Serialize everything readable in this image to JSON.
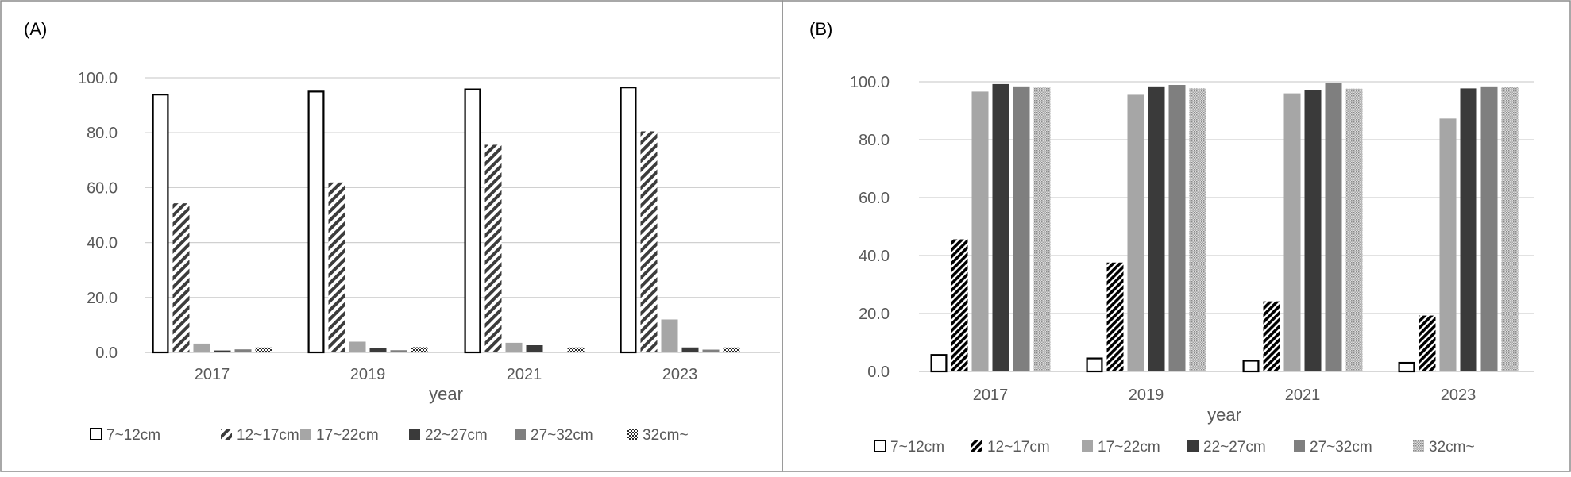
{
  "chart_data": [
    {
      "type": "bar",
      "panel_label": "(A)",
      "xlabel": "year",
      "ylabel": "",
      "ylim": [
        0,
        100
      ],
      "y_ticks": [
        "0.0",
        "20.0",
        "40.0",
        "60.0",
        "80.0",
        "100.0"
      ],
      "grid": true,
      "legend_position": "bottom",
      "categories": [
        "2017",
        "2019",
        "2021",
        "2023"
      ],
      "series": [
        {
          "name": "7~12cm",
          "pattern": "outline",
          "values": [
            94.2,
            95.3,
            96.1,
            96.8
          ]
        },
        {
          "name": "12~17cm",
          "pattern": "diag-wide",
          "values": [
            54.3,
            61.9,
            75.6,
            80.5
          ]
        },
        {
          "name": "17~22cm",
          "pattern": "light",
          "values": [
            3.2,
            3.9,
            3.5,
            12.0
          ]
        },
        {
          "name": "22~27cm",
          "pattern": "dark",
          "values": [
            0.7,
            1.5,
            2.6,
            1.8
          ]
        },
        {
          "name": "27~32cm",
          "pattern": "mid",
          "values": [
            1.1,
            0.8,
            0.0,
            1.0
          ]
        },
        {
          "name": "32cm~",
          "pattern": "checker",
          "values": [
            1.8,
            1.9,
            1.8,
            1.8
          ]
        }
      ]
    },
    {
      "type": "bar",
      "panel_label": "(B)",
      "xlabel": "year",
      "ylabel": "",
      "ylim": [
        0,
        100
      ],
      "y_ticks": [
        "0.0",
        "20.0",
        "40.0",
        "60.0",
        "80.0",
        "100.0"
      ],
      "grid": true,
      "legend_position": "bottom",
      "categories": [
        "2017",
        "2019",
        "2021",
        "2023"
      ],
      "series": [
        {
          "name": "7~12cm",
          "pattern": "outline",
          "values": [
            6.0,
            4.8,
            4.0,
            3.3
          ]
        },
        {
          "name": "12~17cm",
          "pattern": "diag-dense",
          "values": [
            45.6,
            37.6,
            24.2,
            19.3
          ]
        },
        {
          "name": "17~22cm",
          "pattern": "light",
          "values": [
            96.6,
            95.5,
            96.0,
            87.3
          ]
        },
        {
          "name": "22~27cm",
          "pattern": "dark",
          "values": [
            99.2,
            98.4,
            97.0,
            97.7
          ]
        },
        {
          "name": "27~32cm",
          "pattern": "mid",
          "values": [
            98.4,
            98.9,
            99.6,
            98.4
          ]
        },
        {
          "name": "32cm~",
          "pattern": "dots",
          "values": [
            98.0,
            97.7,
            97.6,
            98.1
          ]
        }
      ]
    }
  ],
  "colors": {
    "frame": "#8c8c8c",
    "grid": "#d0d0d0",
    "axis_text": "#595959",
    "outline": "#000000",
    "light": "#a6a6a6",
    "mid": "#7f7f7f",
    "dark": "#3a3a3a"
  }
}
